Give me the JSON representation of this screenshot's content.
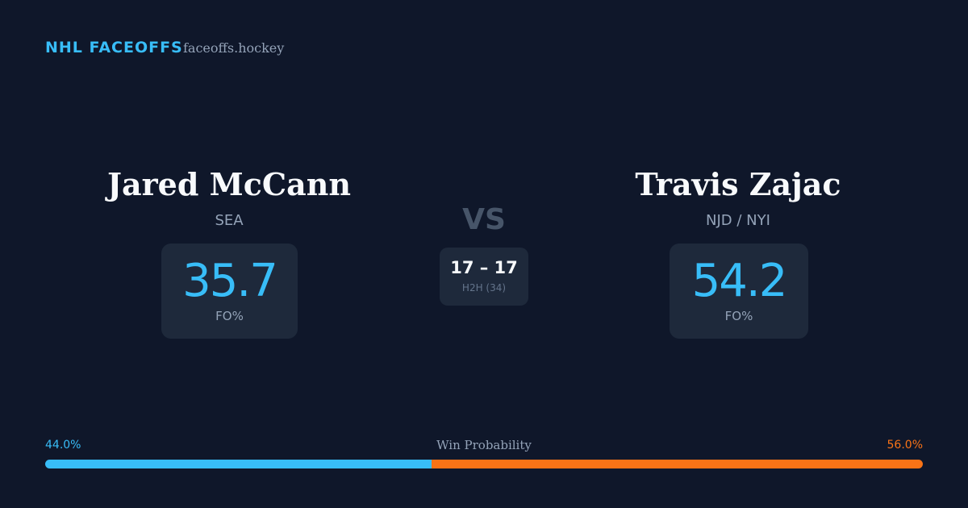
{
  "header": {
    "brand": "NHL FACEOFFS",
    "site": "faceoffs.hockey"
  },
  "players": [
    {
      "name": "Jared McCann",
      "team": "SEA",
      "fo_value": 35.7,
      "fo_label": "FO%"
    },
    {
      "name": "Travis Zajac",
      "team": "NJD / NYI",
      "fo_value": 54.2,
      "fo_label": "FO%"
    }
  ],
  "vs": "VS",
  "h2h": {
    "score": "17 – 17",
    "label": "H2H (34)"
  },
  "win_probability": {
    "label": "Win Probability",
    "values": [
      44,
      56
    ],
    "value_labels": [
      "44.0%",
      "56.0%"
    ],
    "colors": [
      "#38bdf8",
      "#f97316"
    ]
  }
}
